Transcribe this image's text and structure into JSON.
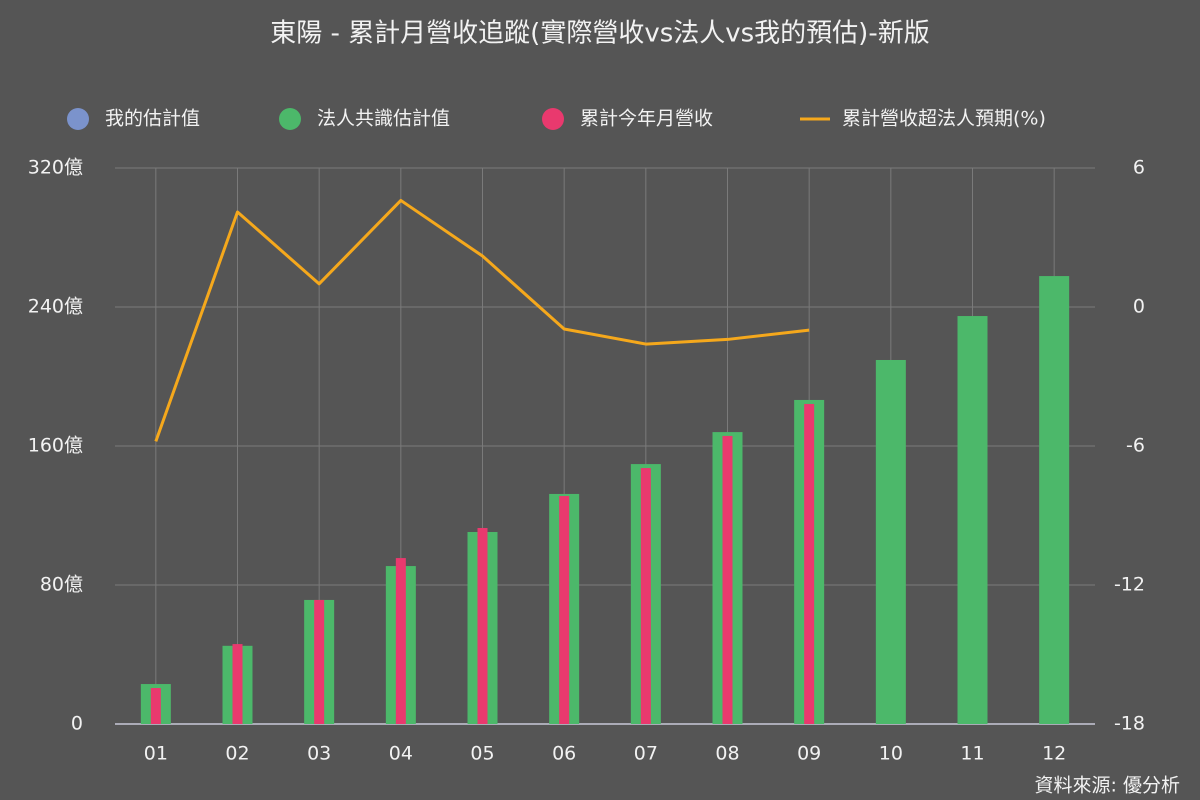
{
  "chart_data": {
    "type": "bar",
    "title": "東陽 - 累計月營收追蹤(實際營收vs法人vs我的預估)-新版",
    "source": "資料來源: 優分析",
    "categories": [
      "01",
      "02",
      "03",
      "04",
      "05",
      "06",
      "07",
      "08",
      "09",
      "10",
      "11",
      "12"
    ],
    "series": [
      {
        "name": "我的估計值",
        "type": "bar",
        "color": "#7b93cc",
        "values": [
          null,
          null,
          null,
          null,
          null,
          null,
          null,
          null,
          null,
          null,
          null,
          null
        ]
      },
      {
        "name": "法人共識估計值",
        "type": "bar",
        "color": "#4cb86a",
        "values": [
          23,
          45,
          71.4,
          90.9,
          110.5,
          132.4,
          149.6,
          168,
          186.5,
          209.5,
          234.8,
          257.8
        ]
      },
      {
        "name": "累計今年月營收",
        "type": "bar",
        "color": "#e9396e",
        "values": [
          20.7,
          46,
          71.4,
          95.5,
          112.8,
          131.2,
          147.3,
          165.8,
          184.2,
          null,
          null,
          null
        ]
      },
      {
        "name": "累計營收超法人預期(%)",
        "type": "line",
        "axis": "y2",
        "color": "#f5a81c",
        "values": [
          -5.8,
          4.1,
          1.0,
          4.6,
          2.2,
          -0.95,
          -1.6,
          -1.4,
          -1.0,
          null,
          null,
          null
        ]
      }
    ],
    "ylim": [
      0,
      320
    ],
    "yticks": [
      0,
      {
        "value": 80,
        "label": "80億"
      },
      {
        "value": 160,
        "label": "160億"
      },
      {
        "value": 240,
        "label": "240億"
      },
      {
        "value": 320,
        "label": "320億"
      }
    ],
    "y2lim": [
      -18,
      6
    ],
    "y2ticks": [
      -18,
      -12,
      -6,
      0,
      6
    ],
    "grid": true
  }
}
